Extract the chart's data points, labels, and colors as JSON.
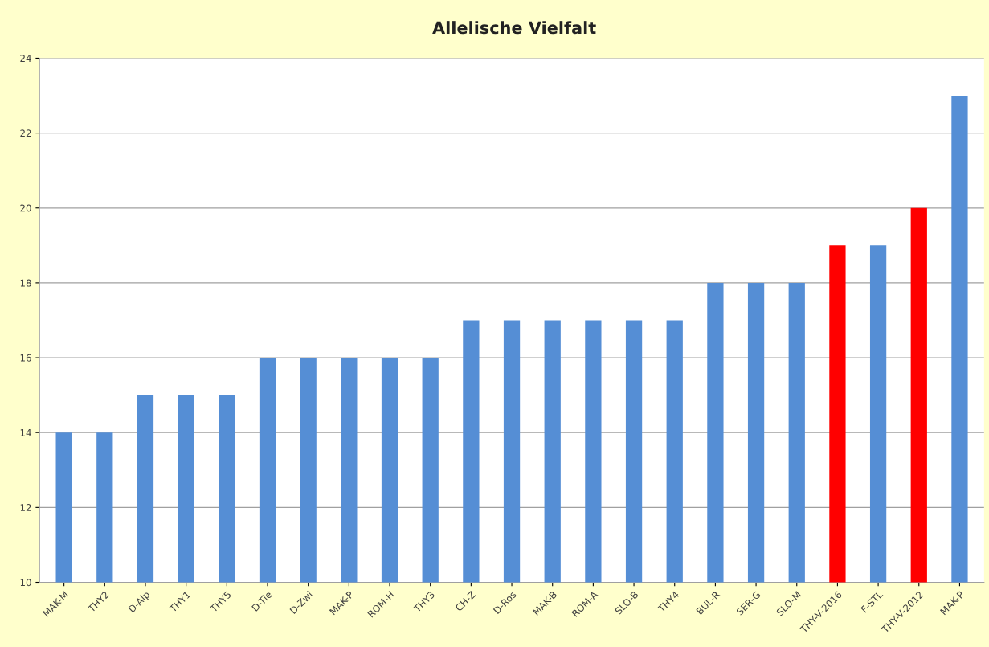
{
  "chart_data": {
    "type": "bar",
    "title": "Allelische Vielfalt",
    "categories": [
      "MAK-M",
      "THY2",
      "D-Alp",
      "THY1",
      "THY5",
      "D-Tie",
      "D-Zwi",
      "MAK-P",
      "ROM-H",
      "THY3",
      "CH-Z",
      "D-Ros",
      "MAK-B",
      "ROM-A",
      "SLO-B",
      "THY4",
      "BUL-R",
      "SER-G",
      "SLO-M",
      "THY-V-2016",
      "F-STL",
      "THY-V-2012",
      "MAK-P"
    ],
    "values": [
      14,
      14,
      15,
      15,
      15,
      16,
      16,
      16,
      16,
      16,
      17,
      17,
      17,
      17,
      17,
      17,
      18,
      18,
      18,
      19,
      19,
      20,
      23
    ],
    "colors": [
      "#558ed5",
      "#558ed5",
      "#558ed5",
      "#558ed5",
      "#558ed5",
      "#558ed5",
      "#558ed5",
      "#558ed5",
      "#558ed5",
      "#558ed5",
      "#558ed5",
      "#558ed5",
      "#558ed5",
      "#558ed5",
      "#558ed5",
      "#558ed5",
      "#558ed5",
      "#558ed5",
      "#558ed5",
      "#ff0000",
      "#558ed5",
      "#ff0000",
      "#558ed5"
    ],
    "ylim": [
      10,
      24
    ],
    "yticks": [
      10,
      12,
      14,
      16,
      18,
      20,
      22,
      24
    ],
    "grid": "y"
  }
}
